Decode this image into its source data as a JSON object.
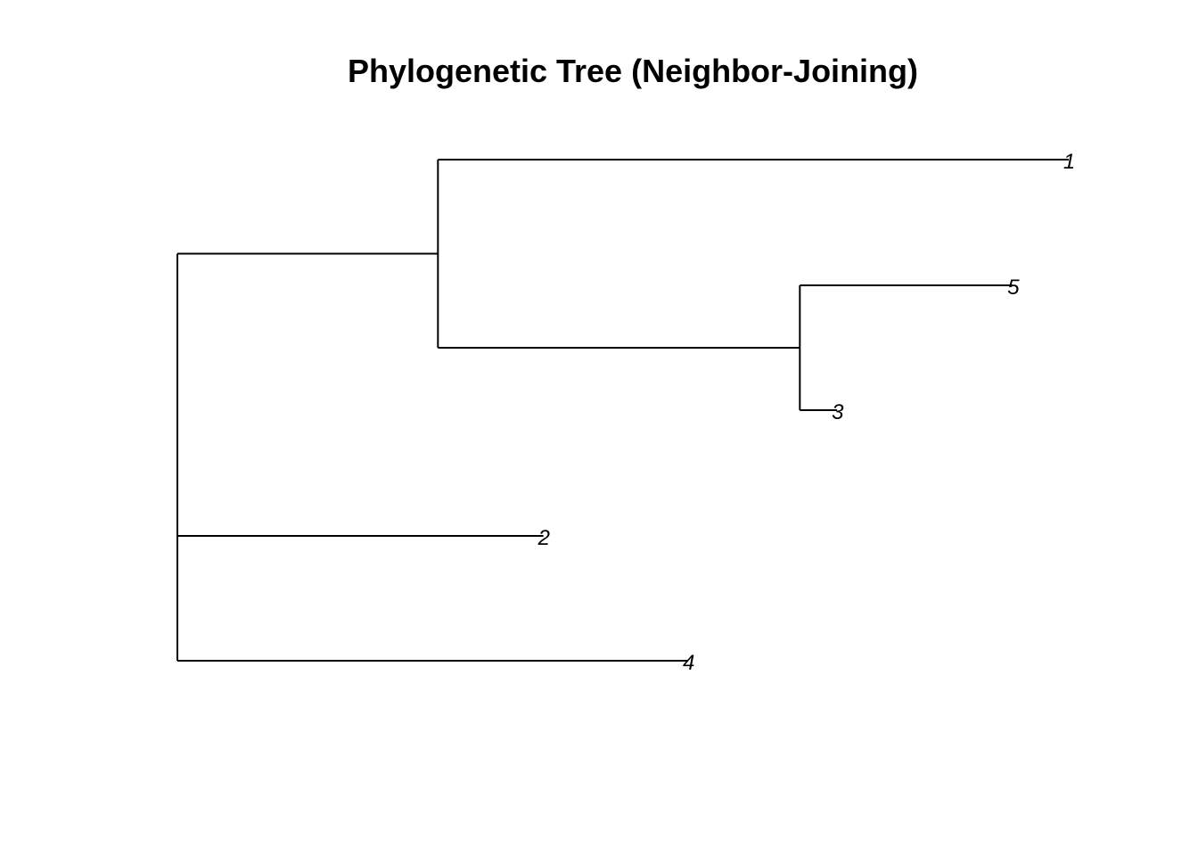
{
  "title": "Phylogenetic Tree (Neighbor-Joining)",
  "tree": {
    "method": "Neighbor-Joining",
    "layout": "rectangular phylogram",
    "edge_color": "#000000",
    "label_color": "#000000",
    "tips": [
      {
        "id": "t1",
        "label": "1",
        "branch_length": 0.305
      },
      {
        "id": "t5",
        "label": "5",
        "branch_length": 0.103
      },
      {
        "id": "t3",
        "label": "3",
        "branch_length": 0.018
      },
      {
        "id": "t2",
        "label": "2",
        "branch_length": 0.177
      },
      {
        "id": "t4",
        "label": "4",
        "branch_length": 0.247
      }
    ],
    "internal_nodes": [
      {
        "id": "root",
        "branch_length": 0
      },
      {
        "id": "n1",
        "parent": "root",
        "branch_length": 0.126
      },
      {
        "id": "n2",
        "parent": "n1",
        "branch_length": 0.175
      }
    ],
    "edges": [
      {
        "from": "root",
        "to": "n1"
      },
      {
        "from": "root",
        "to": "t2"
      },
      {
        "from": "root",
        "to": "t4"
      },
      {
        "from": "n1",
        "to": "t1"
      },
      {
        "from": "n1",
        "to": "n2"
      },
      {
        "from": "n2",
        "to": "t5"
      },
      {
        "from": "n2",
        "to": "t3"
      }
    ],
    "newick": "((1:0.305,(5:0.103,3:0.018):0.175):0.126,2:0.177,4:0.247);"
  }
}
